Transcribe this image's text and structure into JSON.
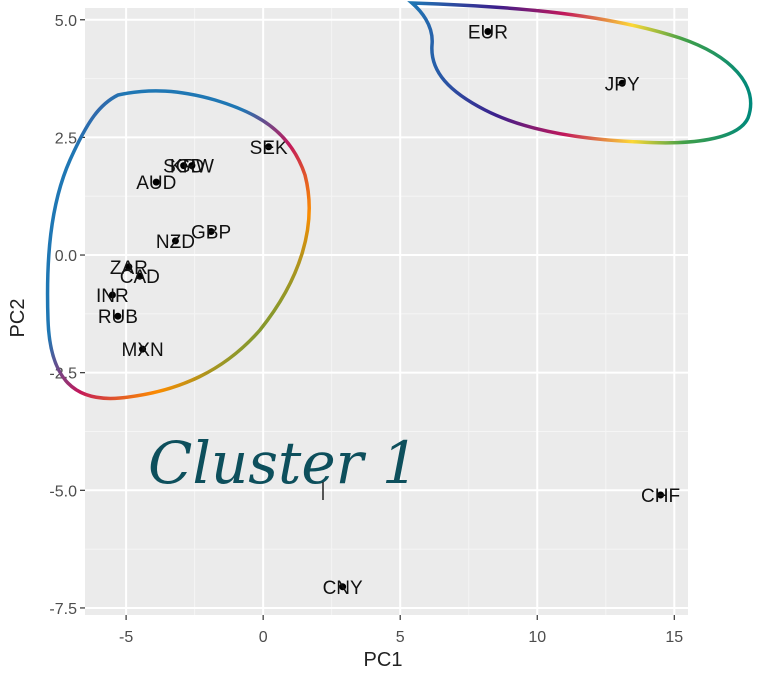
{
  "chart_data": {
    "type": "scatter",
    "xlabel": "PC1",
    "ylabel": "PC2",
    "xlim": [
      -6.5,
      15.5
    ],
    "ylim": [
      -7.65,
      5.25
    ],
    "x_ticks": [
      -5,
      0,
      5,
      10,
      15
    ],
    "x_tick_labels": [
      "-5",
      "0",
      "5",
      "10",
      "15"
    ],
    "y_ticks": [
      -7.5,
      -5.0,
      -2.5,
      0.0,
      2.5,
      5.0
    ],
    "y_tick_labels": [
      "-7.5",
      "-5.0",
      "-2.5",
      "0.0",
      "2.5",
      "5.0"
    ],
    "grid": true,
    "panel_background": "#ebebeb",
    "points": [
      {
        "label": "EUR",
        "x": 8.2,
        "y": 4.75
      },
      {
        "label": "JPY",
        "x": 13.1,
        "y": 3.65
      },
      {
        "label": "SEK",
        "x": 0.2,
        "y": 2.3
      },
      {
        "label": "SGD",
        "x": -2.9,
        "y": 1.9
      },
      {
        "label": "KRW",
        "x": -2.6,
        "y": 1.9
      },
      {
        "label": "AUD",
        "x": -3.9,
        "y": 1.55
      },
      {
        "label": "GBP",
        "x": -1.9,
        "y": 0.5
      },
      {
        "label": "NZD",
        "x": -3.2,
        "y": 0.3
      },
      {
        "label": "ZAR",
        "x": -4.9,
        "y": -0.25
      },
      {
        "label": "CAD",
        "x": -4.5,
        "y": -0.45
      },
      {
        "label": "INR",
        "x": -5.5,
        "y": -0.85
      },
      {
        "label": "RUB",
        "x": -5.3,
        "y": -1.3
      },
      {
        "label": "MXN",
        "x": -4.4,
        "y": -2.0
      },
      {
        "label": "CHF",
        "x": 14.5,
        "y": -5.1
      },
      {
        "label": "CNY",
        "x": 2.9,
        "y": -7.05
      }
    ]
  },
  "annotations": {
    "handwritten_label": "Cluster 1",
    "rainbow_colors": [
      "#1f77b4",
      "#3b1f8c",
      "#8a1c7c",
      "#c2185b",
      "#e53935",
      "#fb8c00",
      "#fdd835",
      "#43a047",
      "#00897b"
    ],
    "label_color": "#0d4f5c"
  }
}
